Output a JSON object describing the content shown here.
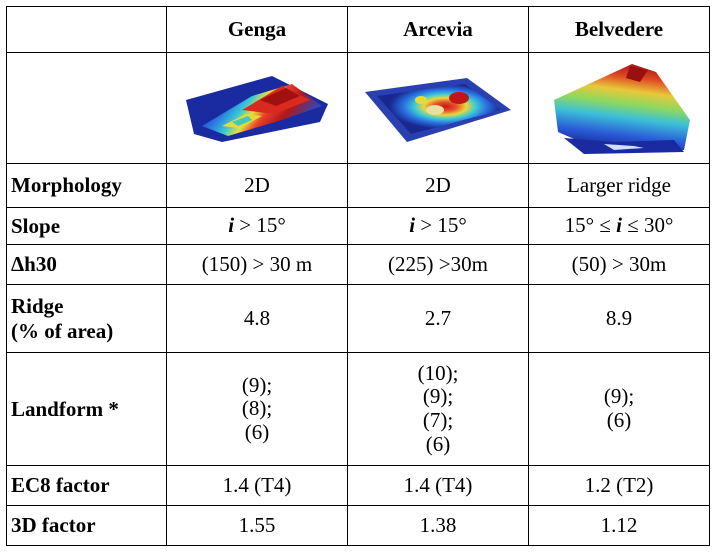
{
  "table": {
    "columns": [
      "",
      "Genga",
      "Arcevia",
      "Belvedere"
    ],
    "image_row_label": "",
    "images": [
      {
        "name": "genga-terrain",
        "site": "Genga"
      },
      {
        "name": "arcevia-terrain",
        "site": "Arcevia"
      },
      {
        "name": "belvedere-terrain",
        "site": "Belvedere"
      }
    ],
    "rows": [
      {
        "label": "Morphology",
        "values": [
          "2D",
          "2D",
          "Larger ridge"
        ]
      },
      {
        "label": "Slope",
        "values": [
          {
            "pre": "",
            "var": "i",
            "post": " > 15°"
          },
          {
            "pre": "",
            "var": "i",
            "post": " > 15°"
          },
          {
            "pre": "15° ≤ ",
            "var": "i",
            "post": " ≤ 30°"
          }
        ]
      },
      {
        "label": "Δh30",
        "values": [
          "(150) > 30 m",
          "(225) >30m",
          "(50) > 30m"
        ]
      },
      {
        "label_lines": [
          "Ridge",
          "(% of area)"
        ],
        "values": [
          "4.8",
          "2.7",
          "8.9"
        ]
      },
      {
        "label": "Landform *",
        "values": [
          [
            "(9);",
            "(8);",
            "(6)"
          ],
          [
            "(10);",
            "(9);",
            "(7);",
            "(6)"
          ],
          [
            "(9);",
            "(6)"
          ]
        ]
      },
      {
        "label": "EC8 factor",
        "values": [
          "1.4 (T4)",
          "1.4 (T4)",
          "1.2 (T2)"
        ]
      },
      {
        "label": "3D factor",
        "values": [
          "1.55",
          "1.38",
          "1.12"
        ]
      }
    ]
  }
}
